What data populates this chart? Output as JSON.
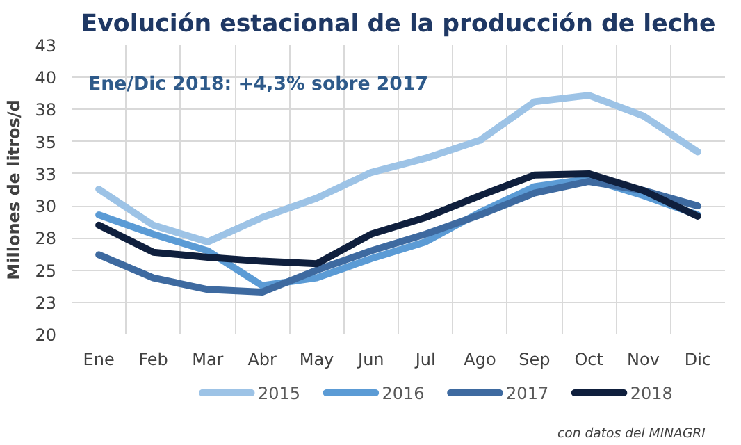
{
  "chart_data": {
    "type": "line",
    "title": "Evolución estacional de la producción de leche",
    "ylabel": "Millones de litros/d",
    "categories": [
      "Ene",
      "Feb",
      "Mar",
      "Abr",
      "May",
      "Jun",
      "Jul",
      "Ago",
      "Sep",
      "Oct",
      "Nov",
      "Dic"
    ],
    "series": [
      {
        "name": "2015",
        "color": "#9dc3e6",
        "values": [
          31.3,
          28.5,
          27.2,
          29.1,
          30.6,
          32.6,
          33.7,
          35.1,
          38.1,
          38.6,
          37.0,
          34.2
        ]
      },
      {
        "name": "2016",
        "color": "#5b9bd5",
        "values": [
          29.3,
          27.8,
          26.5,
          23.8,
          24.4,
          25.9,
          27.2,
          29.5,
          31.5,
          32.1,
          30.8,
          29.3
        ]
      },
      {
        "name": "2017",
        "color": "#3e6aa0",
        "values": [
          26.2,
          24.4,
          23.5,
          23.3,
          25.0,
          26.5,
          27.8,
          29.3,
          31.0,
          31.9,
          31.2,
          30.0
        ]
      },
      {
        "name": "2018",
        "color": "#0f1f3d",
        "values": [
          28.5,
          26.4,
          26.0,
          25.7,
          25.5,
          27.8,
          29.1,
          30.8,
          32.4,
          32.5,
          31.2,
          29.2
        ]
      }
    ],
    "ylim": [
      20,
      42.5
    ],
    "yticks": [
      20,
      {
        "value": 22.5,
        "label": "23"
      },
      25,
      {
        "value": 27.5,
        "label": "28"
      },
      30,
      {
        "value": 32.5,
        "label": "33"
      },
      35,
      {
        "value": 37.5,
        "label": "38"
      },
      40,
      {
        "value": 42.5,
        "label": "43"
      }
    ],
    "grid": true,
    "legend": "bottom",
    "line_style": "solid",
    "marker": "none",
    "annotations": [
      "Ene/Dic 2018: +4,3% sobre 2017",
      "con datos del MINAGRI"
    ]
  }
}
